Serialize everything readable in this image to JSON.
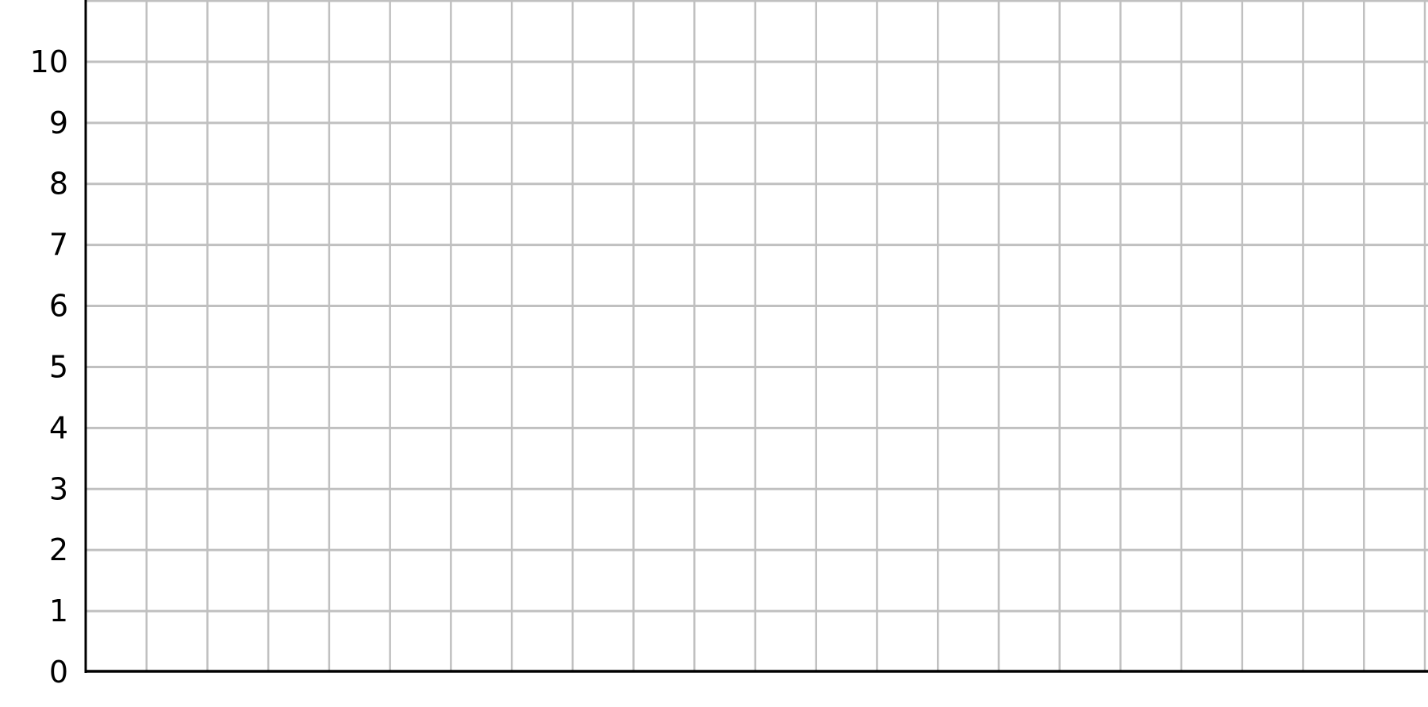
{
  "chart_data": {
    "type": "line",
    "title": "",
    "xlabel": "",
    "ylabel": "",
    "series": [],
    "xlim": [
      0,
      22
    ],
    "ylim": [
      0,
      11
    ],
    "x_gridlines": 22,
    "y_ticks": [
      "0",
      "1",
      "2",
      "3",
      "4",
      "5",
      "6",
      "7",
      "8",
      "9",
      "10"
    ],
    "grid": true,
    "grid_color": "#c0c0c0",
    "axis_color": "#000000"
  }
}
